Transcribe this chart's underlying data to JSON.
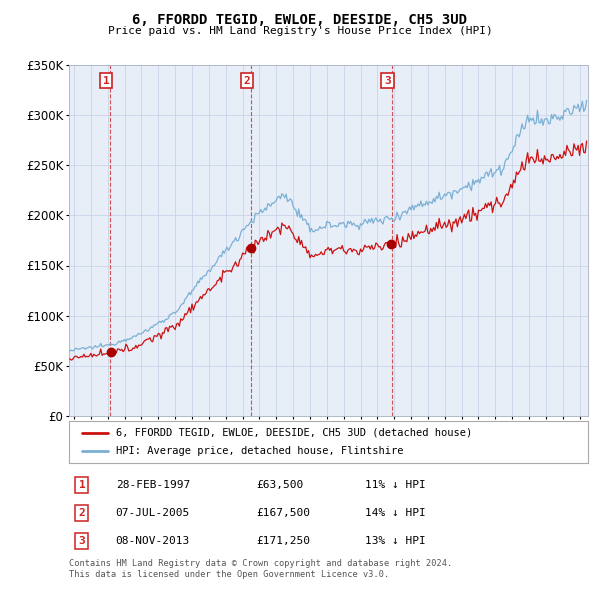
{
  "title": "6, FFORDD TEGID, EWLOE, DEESIDE, CH5 3UD",
  "subtitle": "Price paid vs. HM Land Registry's House Price Index (HPI)",
  "legend_line1": "6, FFORDD TEGID, EWLOE, DEESIDE, CH5 3UD (detached house)",
  "legend_line2": "HPI: Average price, detached house, Flintshire",
  "footer1": "Contains HM Land Registry data © Crown copyright and database right 2024.",
  "footer2": "This data is licensed under the Open Government Licence v3.0.",
  "transactions": [
    {
      "num": 1,
      "date": "28-FEB-1997",
      "price": 63500,
      "pct": "11%",
      "dir": "↓"
    },
    {
      "num": 2,
      "date": "07-JUL-2005",
      "price": 167500,
      "pct": "14%",
      "dir": "↓"
    },
    {
      "num": 3,
      "date": "08-NOV-2013",
      "price": 171250,
      "pct": "13%",
      "dir": "↓"
    }
  ],
  "sale_dates_decimal": [
    1997.15,
    2005.52,
    2013.85
  ],
  "sale_prices": [
    63500,
    167500,
    171250
  ],
  "hpi_color": "#7ab0d4",
  "price_color": "#cc1111",
  "sale_marker_color": "#aa0000",
  "vline_color": "#cc3333",
  "plot_bg_color": "#e8eef8",
  "grid_color": "#c8d4e8",
  "y_min": 0,
  "y_max": 350000,
  "x_min": 1994.7,
  "x_max": 2025.5
}
